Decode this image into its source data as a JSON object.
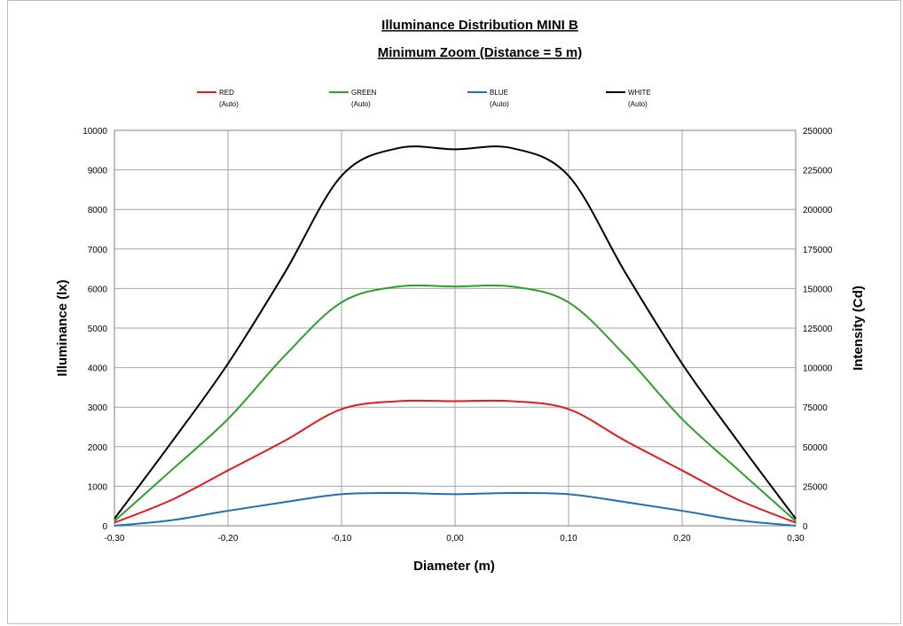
{
  "chart_data": {
    "type": "line",
    "title": "Illuminance Distribution MINI B",
    "subtitle": "Minimum Zoom (Distance = 5 m)",
    "xlabel": "Diameter (m)",
    "ylabel": "Illuminance  (lx)",
    "y2label": "Intensity  (Cd)",
    "xlim": [
      -0.3,
      0.3
    ],
    "ylim": [
      0,
      10000
    ],
    "y2lim": [
      0,
      250000
    ],
    "x_ticks": [
      "-0,30",
      "-0,20",
      "-0,10",
      "0,00",
      "0,10",
      "0,20",
      "0,30"
    ],
    "y_ticks": [
      "0",
      "1000",
      "2000",
      "3000",
      "4000",
      "5000",
      "6000",
      "7000",
      "8000",
      "9000",
      "10000"
    ],
    "y2_ticks": [
      "0",
      "25000",
      "50000",
      "75000",
      "100000",
      "125000",
      "150000",
      "175000",
      "200000",
      "225000",
      "250000"
    ],
    "grid": true,
    "legend_position": "top",
    "x": [
      -0.3,
      -0.25,
      -0.2,
      -0.15,
      -0.1,
      -0.05,
      0.0,
      0.05,
      0.1,
      0.15,
      0.2,
      0.25,
      0.3
    ],
    "series": [
      {
        "name": "RED",
        "sub": "(Auto)",
        "color": "#e31a1c",
        "values": [
          80,
          650,
          1400,
          2150,
          2950,
          3150,
          3150,
          3150,
          2950,
          2150,
          1400,
          650,
          80
        ]
      },
      {
        "name": "GREEN",
        "sub": "(Auto)",
        "color": "#2ca02c",
        "values": [
          120,
          1400,
          2700,
          4300,
          5650,
          6050,
          6050,
          6050,
          5650,
          4300,
          2700,
          1400,
          120
        ]
      },
      {
        "name": "BLUE",
        "sub": "(Auto)",
        "color": "#1f6fb4",
        "values": [
          0,
          140,
          380,
          600,
          800,
          830,
          800,
          830,
          800,
          600,
          380,
          140,
          0
        ]
      },
      {
        "name": "WHITE",
        "sub": "(Auto)",
        "color": "#000000",
        "values": [
          180,
          2100,
          4100,
          6400,
          8850,
          9550,
          9520,
          9550,
          8850,
          6400,
          4100,
          2100,
          180
        ]
      }
    ]
  }
}
